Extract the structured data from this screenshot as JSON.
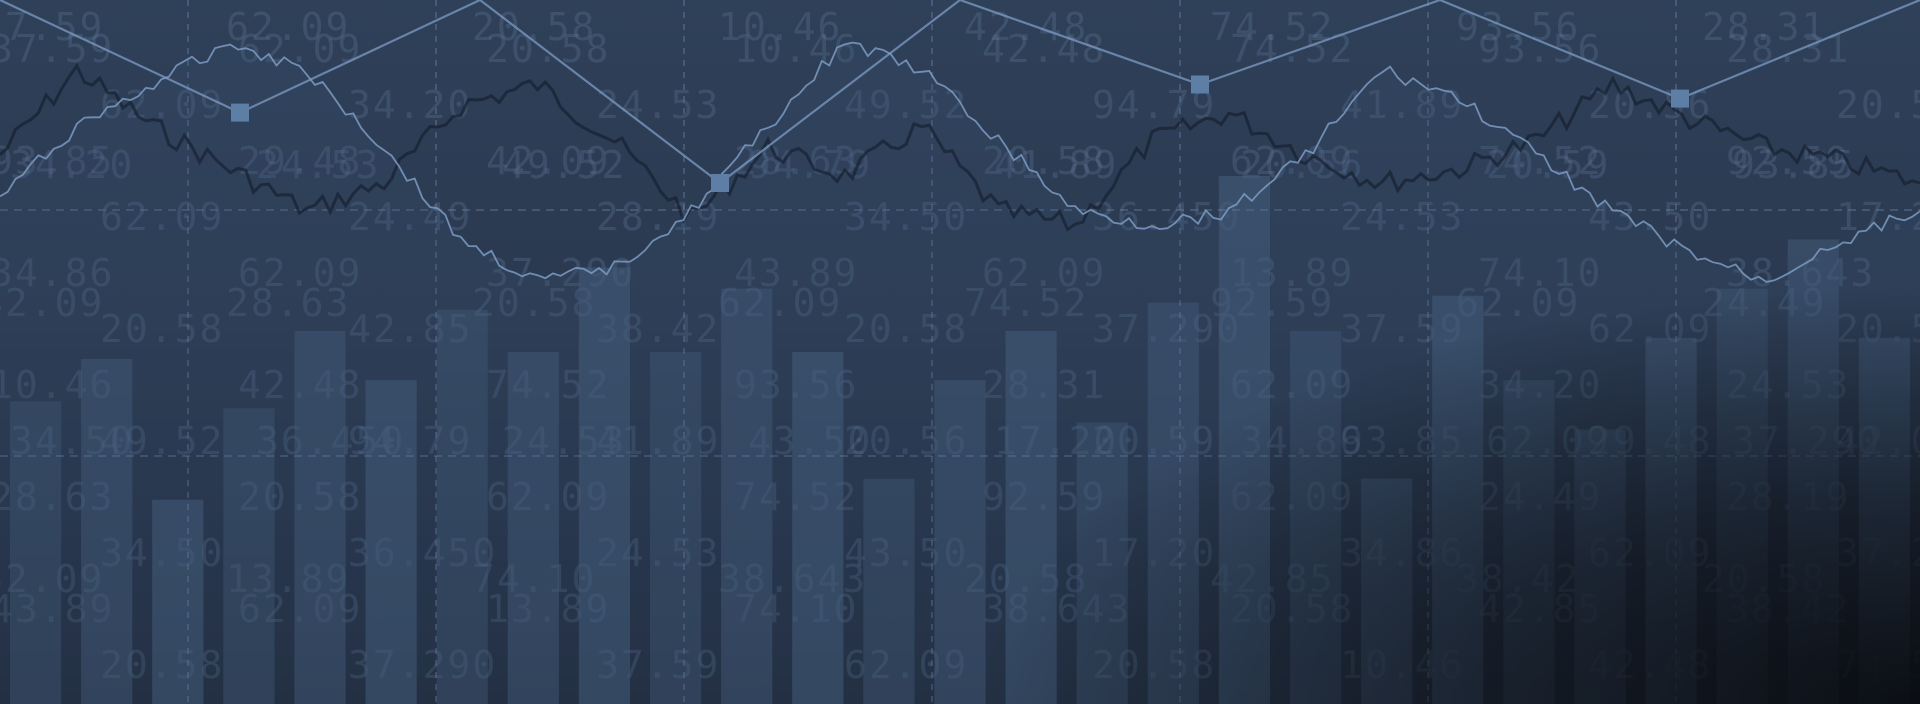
{
  "image": {
    "kind": "abstract financial chart background",
    "palette": {
      "background_top": "#2f4059",
      "background_bottom": "#1d2737",
      "corner_shadow": "#0b0e13",
      "bars": "#47607e",
      "light_line": "#7d9cc4",
      "dark_line": "#172131",
      "grid": "#6c87ad",
      "markers": "#5d7fa6",
      "digits": "#7891b4"
    },
    "background_digits": [
      "37.59",
      "62.09",
      "20.58",
      "10.46",
      "42.48",
      "74.52",
      "93.56",
      "28.31",
      "62.09",
      "34.20",
      "24.53",
      "49.52",
      "94.79",
      "41.89",
      "20.56",
      "20.59",
      "93.85",
      "29.48",
      "42.09",
      "28.63",
      "20.58",
      "62.09",
      "74.52",
      "92.59",
      "62.09",
      "24.49",
      "28.19",
      "34.50",
      "36.450",
      "24.53",
      "43.50",
      "17.20",
      "34.86",
      "62.09",
      "37.290",
      "43.89",
      "62.09",
      "13.89",
      "74.10",
      "38.643",
      "20.58",
      "42.85",
      "38.42",
      "20.58",
      "37.290"
    ]
  },
  "chart_data": {
    "type": "bar",
    "bar_values": [
      43,
      49,
      29,
      42,
      53,
      46,
      56,
      50,
      62,
      50,
      59,
      50,
      32,
      46,
      53,
      40,
      57,
      75,
      53,
      32,
      58,
      46,
      39,
      52,
      59,
      66,
      52
    ],
    "line_series": [
      {
        "name": "",
        "values": [
          78,
          90,
          82,
          76,
          70,
          74,
          85,
          88,
          80,
          69,
          79,
          75,
          82,
          70,
          68,
          80,
          84,
          78,
          74,
          76,
          80,
          88,
          83,
          79,
          77,
          74
        ]
      },
      {
        "name": "",
        "values": [
          72,
          82,
          88,
          94,
          90,
          79,
          66,
          60,
          62,
          70,
          82,
          94,
          90,
          80,
          70,
          68,
          70,
          78,
          90,
          86,
          78,
          70,
          64,
          60,
          66,
          70
        ]
      }
    ],
    "marker_line": [
      100,
      84,
      100,
      74,
      100,
      88,
      100,
      86,
      100
    ],
    "ylim": [
      0,
      100
    ],
    "grid": true
  }
}
